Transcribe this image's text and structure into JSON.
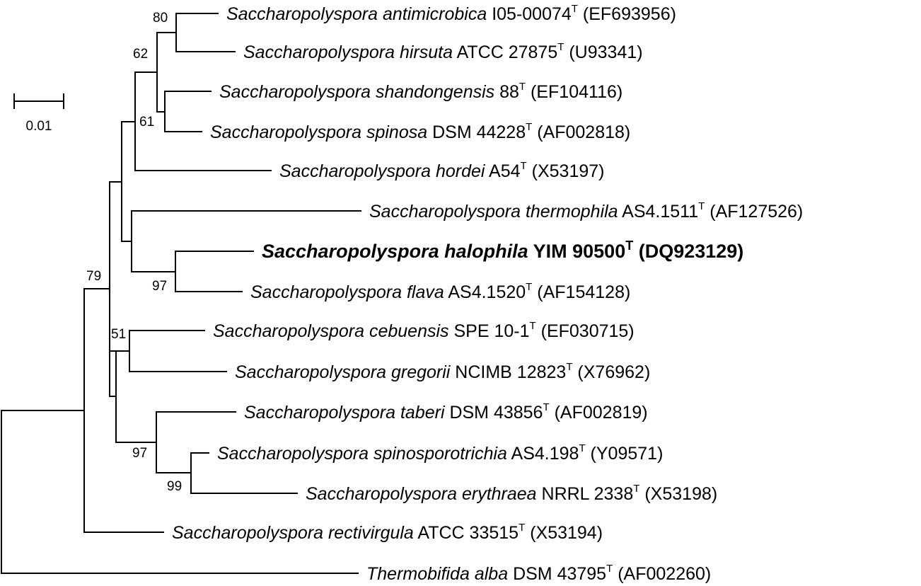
{
  "scale_bar": {
    "label": "0.01"
  },
  "taxa": [
    {
      "id": "antimicrobica",
      "species": "Saccharopolyspora antimicrobica",
      "strain": "I05-00074",
      "type_mark": "T",
      "accession": "(EF693956)",
      "highlight": false
    },
    {
      "id": "hirsuta",
      "species": "Saccharopolyspora hirsuta",
      "strain": "ATCC 27875",
      "type_mark": "T",
      "accession": "(U93341)",
      "highlight": false
    },
    {
      "id": "shandongensis",
      "species": "Saccharopolyspora shandongensis",
      "strain": "88",
      "type_mark": "T",
      "accession": "(EF104116)",
      "highlight": false
    },
    {
      "id": "spinosa",
      "species": "Saccharopolyspora spinosa",
      "strain": "DSM 44228",
      "type_mark": "T",
      "accession": "(AF002818)",
      "highlight": false
    },
    {
      "id": "hordei",
      "species": "Saccharopolyspora hordei",
      "strain": "A54",
      "type_mark": "T",
      "accession": "(X53197)",
      "highlight": false
    },
    {
      "id": "thermophila",
      "species": "Saccharopolyspora thermophila",
      "strain": "AS4.1511",
      "type_mark": "T",
      "accession": "(AF127526)",
      "highlight": false
    },
    {
      "id": "halophila",
      "species": "Saccharopolyspora halophila",
      "strain": "YIM 90500",
      "type_mark": "T",
      "accession": "(DQ923129)",
      "highlight": true
    },
    {
      "id": "flava",
      "species": "Saccharopolyspora flava",
      "strain": "AS4.1520",
      "type_mark": "T",
      "accession": "(AF154128)",
      "highlight": false
    },
    {
      "id": "cebuensis",
      "species": "Saccharopolyspora cebuensis",
      "strain": "SPE 10-1",
      "type_mark": "T",
      "accession": "(EF030715)",
      "highlight": false
    },
    {
      "id": "gregorii",
      "species": "Saccharopolyspora gregorii",
      "strain": "NCIMB 12823",
      "type_mark": "T",
      "accession": "(X76962)",
      "highlight": false
    },
    {
      "id": "taberi",
      "species": "Saccharopolyspora taberi",
      "strain": "DSM 43856",
      "type_mark": "T",
      "accession": "(AF002819)",
      "highlight": false
    },
    {
      "id": "spinosporotrichia",
      "species": "Saccharopolyspora spinosporotrichia",
      "strain": "AS4.198",
      "type_mark": "T",
      "accession": "(Y09571)",
      "highlight": false
    },
    {
      "id": "erythraea",
      "species": "Saccharopolyspora erythraea",
      "strain": "NRRL 2338",
      "type_mark": "T",
      "accession": "(X53198)",
      "highlight": false
    },
    {
      "id": "rectivirgula",
      "species": "Saccharopolyspora rectivirgula",
      "strain": "ATCC 33515",
      "type_mark": "T",
      "accession": "(X53194)",
      "highlight": false
    },
    {
      "id": "alba",
      "species": "Thermobifida alba",
      "strain": "DSM 43795",
      "type_mark": "T",
      "accession": "(AF002260)",
      "highlight": false
    }
  ],
  "bootstrap_values": [
    {
      "id": "bs-80",
      "value": "80"
    },
    {
      "id": "bs-62",
      "value": "62"
    },
    {
      "id": "bs-61",
      "value": "61"
    },
    {
      "id": "bs-79",
      "value": "79"
    },
    {
      "id": "bs-97-flava",
      "value": "97"
    },
    {
      "id": "bs-51",
      "value": "51"
    },
    {
      "id": "bs-97-taberi",
      "value": "97"
    },
    {
      "id": "bs-99",
      "value": "99"
    }
  ]
}
